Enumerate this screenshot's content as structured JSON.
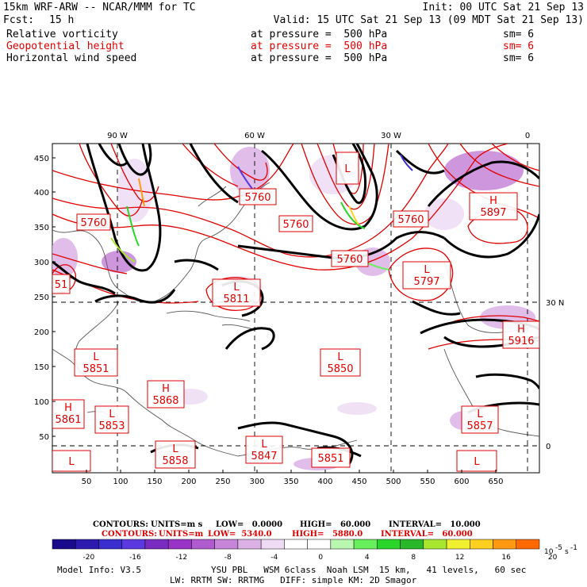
{
  "header": {
    "model_title": "15km WRF-ARW -- NCAR/MMM for TC",
    "init": "Init: 00 UTC Sat 21 Sep 13",
    "fcst_label": "Fcst:",
    "fcst_value": "15 h",
    "valid": "Valid: 15 UTC Sat 21 Sep 13 (09 MDT Sat 21 Sep 13)"
  },
  "fields": [
    {
      "name": "Relative vorticity",
      "level": "at pressure =  500 hPa",
      "smooth": "sm= 6",
      "color": "#000000"
    },
    {
      "name": "Geopotential height",
      "level": "at pressure =  500 hPa",
      "smooth": "sm= 6",
      "color": "#e00000"
    },
    {
      "name": "Horizontal wind speed",
      "level": "at pressure =  500 hPa",
      "smooth": "sm= 6",
      "color": "#000000"
    }
  ],
  "map": {
    "top_lon_labels": [
      "90 W",
      "60 W",
      "30 W",
      "0"
    ],
    "right_lat_labels": [
      "30 N",
      "0"
    ],
    "x_ticks": [
      "50",
      "100",
      "150",
      "200",
      "250",
      "300",
      "350",
      "400",
      "450",
      "500",
      "550",
      "600",
      "650"
    ],
    "y_ticks": [
      "450",
      "400",
      "350",
      "300",
      "250",
      "200",
      "150",
      "100",
      "50"
    ],
    "pressure_systems": [
      {
        "type": "H",
        "value": "5897"
      },
      {
        "type": "L",
        "value": "5797"
      },
      {
        "type": "L",
        "value": "5811"
      },
      {
        "type": "L",
        "value": "5850"
      },
      {
        "type": "H",
        "value": "5916"
      },
      {
        "type": "L",
        "value": "5851"
      },
      {
        "type": "H",
        "value": "5868"
      },
      {
        "type": "H",
        "value": "5861"
      },
      {
        "type": "L",
        "value": "5853"
      },
      {
        "type": "L",
        "value": "5858"
      },
      {
        "type": "L",
        "value": "5847"
      },
      {
        "type": "",
        "value": "5851"
      },
      {
        "type": "L",
        "value": "5857"
      },
      {
        "type": "L",
        "value": ""
      },
      {
        "type": "L",
        "value": ""
      },
      {
        "type": "",
        "value": "5760"
      },
      {
        "type": "",
        "value": "5760"
      },
      {
        "type": "",
        "value": "5760"
      },
      {
        "type": "",
        "value": "5760"
      },
      {
        "type": "",
        "value": "5760"
      },
      {
        "type": "L",
        "value": ""
      },
      {
        "type": "",
        "value": "51"
      }
    ]
  },
  "contours": {
    "line1_label": "CONTOURS:",
    "line1_units": "UNITS=m s",
    "line1_low": "LOW=   0.0000",
    "line1_high": "HIGH=   60.000",
    "line1_interval": "INTERVAL=   10.000",
    "line2_label": "CONTOURS:",
    "line2_units": "UNITS=m",
    "line2_low": "LOW=  5340.0",
    "line2_high": "HIGH=   5880.0",
    "line2_interval": "INTERVAL=   60.000"
  },
  "colorbar": {
    "labels": [
      "-20",
      "-16",
      "-12",
      "-8",
      "-4",
      "0",
      "4",
      "8",
      "12",
      "16",
      "20"
    ],
    "unit": "10",
    "colors": [
      "#1a0a8c",
      "#2d1bb0",
      "#3a2ed0",
      "#5a3ae0",
      "#7a2bc0",
      "#9a34c8",
      "#b05ad0",
      "#c685d8",
      "#dcb2e6",
      "#efdcf4",
      "#ffffff",
      "#ffffff",
      "#b9f7b0",
      "#68ef5c",
      "#2ad62a",
      "#28b82a",
      "#a8e630",
      "#f0f030",
      "#ffd020",
      "#ff9a10",
      "#ff6a00"
    ]
  },
  "footer": {
    "model_info": "Model Info: V3.5",
    "physics1": "YSU PBL   WSM 6class  Noah LSM  15 km,   41 levels,   60 sec",
    "physics2": "LW: RRTM SW: RRTMG   DIFF: simple KM: 2D Smagor"
  }
}
